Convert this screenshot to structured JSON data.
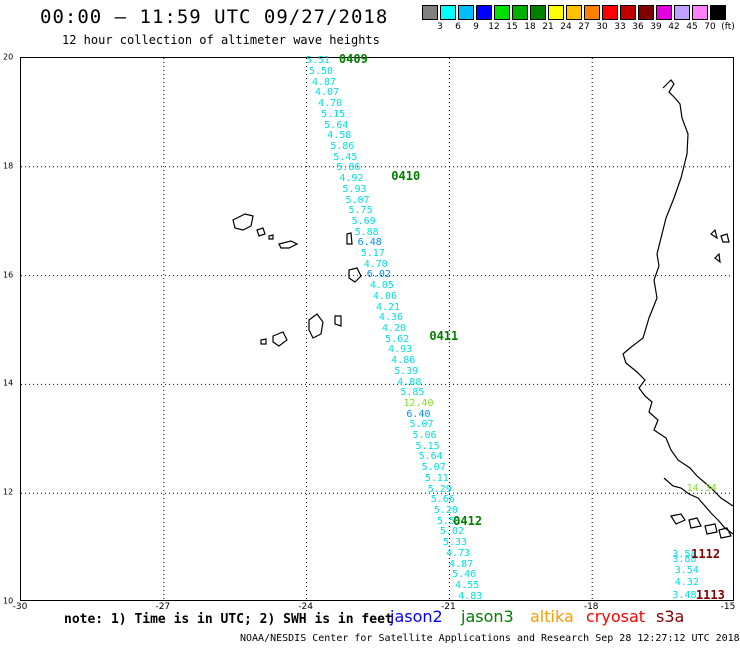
{
  "title": "00:00 – 11:59 UTC 09/27/2018",
  "subtitle": "12 hour collection of altimeter wave heights",
  "colorbar": {
    "colors": [
      "#808080",
      "#00ffff",
      "#00c0ff",
      "#0000ff",
      "#00e000",
      "#00b000",
      "#008000",
      "#ffff00",
      "#ffc000",
      "#ff8000",
      "#ff0000",
      "#c00000",
      "#800000",
      "#e000e0",
      "#c0a0ff",
      "#ff80ff",
      "#000000"
    ],
    "labels": [
      "3",
      "6",
      "9",
      "12",
      "15",
      "18",
      "21",
      "24",
      "27",
      "30",
      "33",
      "36",
      "39",
      "42",
      "45",
      "70",
      "(ft)"
    ]
  },
  "axes": {
    "x_ticks": [
      "-30",
      "-27",
      "-24",
      "-21",
      "-18",
      "-15"
    ],
    "y_ticks": [
      "20",
      "18",
      "16",
      "14",
      "12",
      "10"
    ],
    "xlim": [
      -30,
      -15
    ],
    "ylim": [
      10,
      20
    ]
  },
  "passes": [
    {
      "label": "0409",
      "color": "#008000",
      "lon": -23.3,
      "lat": 19.95
    },
    {
      "label": "0410",
      "color": "#008000",
      "lon": -22.2,
      "lat": 17.8
    },
    {
      "label": "0411",
      "color": "#008000",
      "lon": -21.4,
      "lat": 14.85
    },
    {
      "label": "0412",
      "color": "#008000",
      "lon": -20.9,
      "lat": 11.45
    },
    {
      "label": "1112",
      "color": "#800000",
      "lon": -15.9,
      "lat": 10.85
    },
    {
      "label": "1113",
      "color": "#800000",
      "lon": -15.8,
      "lat": 10.1
    }
  ],
  "observations": [
    {
      "value": "5.51",
      "color": "#00e0e0"
    },
    {
      "value": "5.50",
      "color": "#00e0e0"
    },
    {
      "value": "4.87",
      "color": "#00e0e0"
    },
    {
      "value": "4.07",
      "color": "#00e0e0"
    },
    {
      "value": "4.70",
      "color": "#00e0e0"
    },
    {
      "value": "5.15",
      "color": "#00e0e0"
    },
    {
      "value": "5.64",
      "color": "#00e0e0"
    },
    {
      "value": "4.58",
      "color": "#00e0e0"
    },
    {
      "value": "5.86",
      "color": "#00e0e0"
    },
    {
      "value": "5.45",
      "color": "#00e0e0"
    },
    {
      "value": "5.86",
      "color": "#00e0e0"
    },
    {
      "value": "4.92",
      "color": "#00e0e0"
    },
    {
      "value": "5.93",
      "color": "#00e0e0"
    },
    {
      "value": "5.07",
      "color": "#00e0e0"
    },
    {
      "value": "5.75",
      "color": "#00e0e0"
    },
    {
      "value": "5.69",
      "color": "#00e0e0"
    },
    {
      "value": "5.88",
      "color": "#00e0e0"
    },
    {
      "value": "6.48",
      "color": "#0090ff"
    },
    {
      "value": "5.17",
      "color": "#00e0e0"
    },
    {
      "value": "4.70",
      "color": "#00e0e0"
    },
    {
      "value": "6.02",
      "color": "#0090ff"
    },
    {
      "value": "4.05",
      "color": "#00e0e0"
    },
    {
      "value": "4.06",
      "color": "#00e0e0"
    },
    {
      "value": "4.21",
      "color": "#00e0e0"
    },
    {
      "value": "4.36",
      "color": "#00e0e0"
    },
    {
      "value": "4.20",
      "color": "#00e0e0"
    },
    {
      "value": "5.62",
      "color": "#00e0e0"
    },
    {
      "value": "4.93",
      "color": "#00e0e0"
    },
    {
      "value": "4.86",
      "color": "#00e0e0"
    },
    {
      "value": "5.39",
      "color": "#00e0e0"
    },
    {
      "value": "4.88",
      "color": "#00e0e0"
    },
    {
      "value": "5.85",
      "color": "#00e0e0"
    },
    {
      "value": "12.40",
      "color": "#80e020"
    },
    {
      "value": "6.40",
      "color": "#0090ff"
    },
    {
      "value": "5.07",
      "color": "#00e0e0"
    },
    {
      "value": "5.06",
      "color": "#00e0e0"
    },
    {
      "value": "5.15",
      "color": "#00e0e0"
    },
    {
      "value": "5.64",
      "color": "#00e0e0"
    },
    {
      "value": "5.07",
      "color": "#00e0e0"
    },
    {
      "value": "5.11",
      "color": "#00e0e0"
    },
    {
      "value": "5.29",
      "color": "#00e0e0"
    },
    {
      "value": "5.66",
      "color": "#00e0e0"
    },
    {
      "value": "5.20",
      "color": "#00e0e0"
    },
    {
      "value": "5.51",
      "color": "#00e0e0"
    },
    {
      "value": "5.02",
      "color": "#00e0e0"
    },
    {
      "value": "5.33",
      "color": "#00e0e0"
    },
    {
      "value": "4.73",
      "color": "#00e0e0"
    },
    {
      "value": "4.87",
      "color": "#00e0e0"
    },
    {
      "value": "5.46",
      "color": "#00e0e0"
    },
    {
      "value": "4.55",
      "color": "#00e0e0"
    },
    {
      "value": "4.83",
      "color": "#00e0e0"
    }
  ],
  "coastal_observations": [
    {
      "value": "14.34",
      "color": "#80e020",
      "lon": -15.7,
      "lat": 12.05
    },
    {
      "value": "3.58",
      "color": "#00e0e0",
      "lon": -16.0,
      "lat": 10.85
    },
    {
      "value": "3.88",
      "color": "#00e0e0",
      "lon": -16.0,
      "lat": 10.75
    },
    {
      "value": "3.54",
      "color": "#00e0e0",
      "lon": -15.95,
      "lat": 10.55
    },
    {
      "value": "4.32",
      "color": "#00e0e0",
      "lon": -15.95,
      "lat": 10.33
    },
    {
      "value": "3.48",
      "color": "#00e0e0",
      "lon": -16.0,
      "lat": 10.1
    }
  ],
  "note": "note: 1) Time is in UTC; 2) SWH is in feet",
  "satellites": [
    {
      "name": "jason2",
      "color": "#0000ff"
    },
    {
      "name": "jason3",
      "color": "#008000"
    },
    {
      "name": "altika",
      "color": "#ff9900"
    },
    {
      "name": "cryosat",
      "color": "#ff0000"
    },
    {
      "name": "s3a",
      "color": "#800000"
    }
  ],
  "credit": "NOAA/NESDIS Center for Satellite Applications and Research   Sep 28 12:27:12 UTC 2018"
}
